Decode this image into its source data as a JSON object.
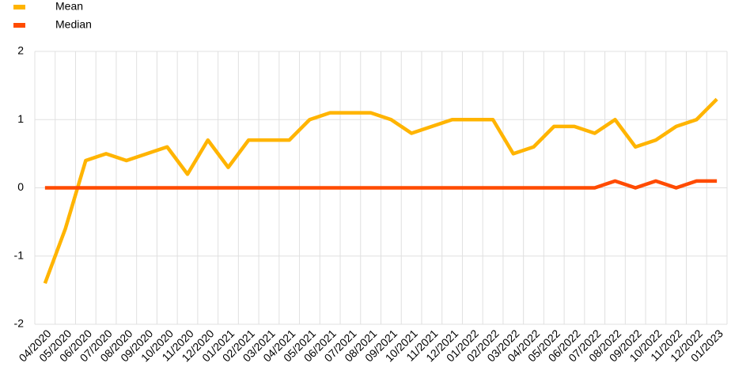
{
  "chart_data": {
    "type": "line",
    "categories": [
      "04/2020",
      "05/2020",
      "06/2020",
      "07/2020",
      "08/2020",
      "09/2020",
      "10/2020",
      "11/2020",
      "12/2020",
      "01/2021",
      "02/2021",
      "03/2021",
      "04/2021",
      "05/2021",
      "06/2021",
      "07/2021",
      "08/2021",
      "09/2021",
      "10/2021",
      "11/2021",
      "12/2021",
      "01/2022",
      "02/2022",
      "03/2022",
      "04/2022",
      "05/2022",
      "06/2022",
      "07/2022",
      "08/2022",
      "09/2022",
      "10/2022",
      "11/2022",
      "12/2022",
      "01/2023"
    ],
    "series": [
      {
        "name": "Mean",
        "color": "#ffb400",
        "values": [
          -1.4,
          -0.6,
          0.4,
          0.5,
          0.4,
          0.5,
          0.6,
          0.2,
          0.7,
          0.3,
          0.7,
          0.7,
          0.7,
          1.0,
          1.1,
          1.1,
          1.1,
          1.0,
          0.8,
          0.9,
          1.0,
          1.0,
          1.0,
          0.5,
          0.6,
          0.9,
          0.9,
          0.8,
          1.0,
          0.6,
          0.7,
          0.9,
          1.0,
          1.3
        ]
      },
      {
        "name": "Median",
        "color": "#ff4b00",
        "values": [
          0,
          0,
          0,
          0,
          0,
          0,
          0,
          0,
          0,
          0,
          0,
          0,
          0,
          0,
          0,
          0,
          0,
          0,
          0,
          0,
          0,
          0,
          0,
          0,
          0,
          0,
          0,
          0,
          0.1,
          0,
          0.1,
          0,
          0.1,
          0.1
        ]
      }
    ],
    "ylim": [
      -2,
      2
    ],
    "yticks": [
      -2,
      -1,
      0,
      1,
      2
    ],
    "grid": true
  }
}
